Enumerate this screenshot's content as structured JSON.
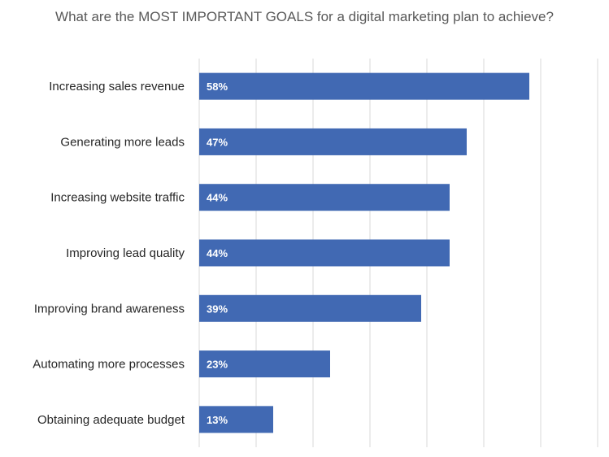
{
  "chart_data": {
    "type": "bar",
    "orientation": "horizontal",
    "title": "What are the MOST IMPORTANT GOALS for a digital marketing plan to achieve?",
    "categories": [
      "Increasing sales revenue",
      "Generating more leads",
      "Increasing website traffic",
      "Improving lead quality",
      "Improving brand awareness",
      "Automating more processes",
      "Obtaining adequate budget"
    ],
    "values": [
      58,
      47,
      44,
      44,
      39,
      23,
      13
    ],
    "value_labels": [
      "58%",
      "47%",
      "44%",
      "44%",
      "39%",
      "23%",
      "13%"
    ],
    "xlim": [
      0,
      70
    ],
    "grid": true,
    "legend": "none",
    "bar_color": "#4169B3"
  }
}
